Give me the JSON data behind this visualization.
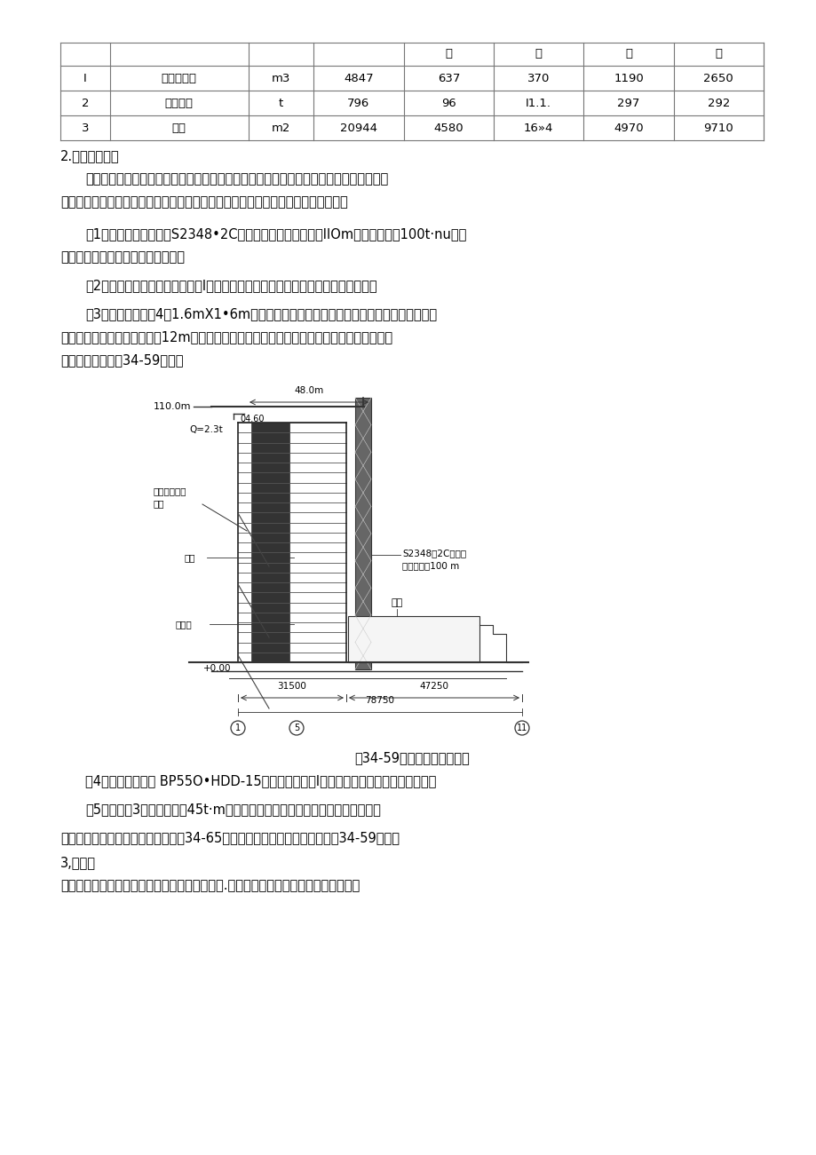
{
  "page_bg": "#ffffff",
  "table": {
    "header_row": [
      "",
      "",
      "",
      "",
      "墙",
      "柱",
      "梁",
      "板"
    ],
    "rows": [
      [
        "I",
        "钉筋混凝土",
        "m3",
        "4847",
        "637",
        "370",
        "1190",
        "2650"
      ],
      [
        "2",
        "成型钉筋",
        "t",
        "796",
        "96",
        "I1.1.",
        "297",
        "292"
      ],
      [
        "3",
        "模板",
        "m2",
        "20944",
        "4580",
        "16»4",
        "4970",
        "9710"
      ]
    ]
  },
  "section_title": "2.垂直运输机械",
  "para1_line1": "垂直运输机械的选择，通过计穿工作幅度、起更尚度、起重量和起垃力矩等主要参数及塔",
  "para1_line2": "机的生产率等，进行综合考虑，择优选用。本工程的垂直运输机械的布置方案如下：",
  "para2_line1": "（1）在塔楼南側设一台S2348•2C型定点塔式起重机，机高IIOm，起重能力为100t·nu负货",
  "para2_line2": "塔楼模板和钉筋的水平和垂直运输。",
  "para3": "（2）在塔楼西部设双笼施工电梯I台，负责人员、小型工具和零星材料的垂直运输。",
  "para4_line1": "（3）在中心筒内设4台1.6mX1•6m附堡金属井架，并以角钉做斜撞联成整体，不另设缆风",
  "para4_line2": "绳，井架总保持高于施工楼层12m。负责模板、材料及工具运输，并作为混凝土泵故障时的应",
  "para4_line3": "急运输设备，如图34-59所东。",
  "figure_caption": "图34-59塔楼机械立面示意图",
  "after1_line1": "（4）在塔楼外側设 BP55O•HDD-15型混凝土输送泵I台，负责混凝土垂直和水平运输。",
  "after2_line1": "（5）裙楼设3台起重能力为45t·m的塔式起重机，负责该楼的水平和垂直运输。",
  "after3_line1": "裙楼及塔楼主要机械平面布置，如图34-65所示；塔楼机械立面示意图，如图34-59所示。",
  "after4": "3,脚手架",
  "after5_line1": "为便于裙楼和塔楼安装模板、绱扎钉筋和外装饰.均采用双排钉管外脚手架。裙楼外脚手"
}
